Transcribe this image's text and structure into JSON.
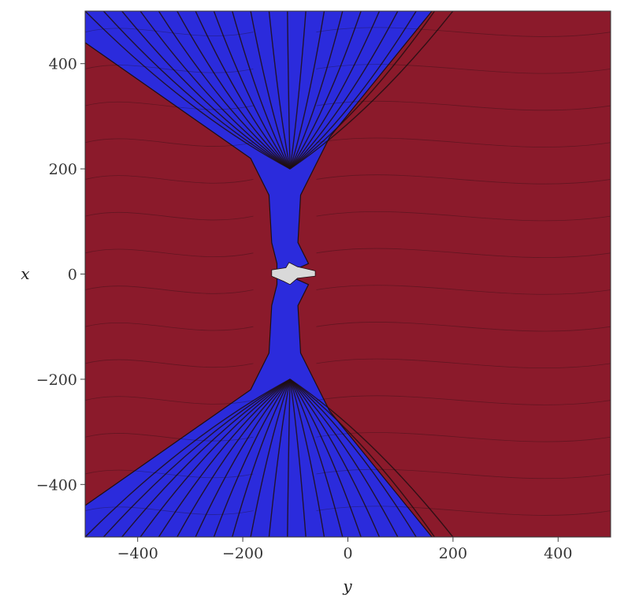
{
  "chart_data": {
    "type": "heatmap",
    "xlabel": "y",
    "ylabel": "x",
    "xlim": [
      -500,
      500
    ],
    "ylim": [
      -500,
      500
    ],
    "xticks": [
      {
        "value": -400,
        "label": "−400"
      },
      {
        "value": -200,
        "label": "−200"
      },
      {
        "value": 0,
        "label": "0"
      },
      {
        "value": 200,
        "label": "200"
      },
      {
        "value": 400,
        "label": "400"
      }
    ],
    "yticks": [
      {
        "value": 400,
        "label": "400"
      },
      {
        "value": 200,
        "label": "200"
      },
      {
        "value": 0,
        "label": "0"
      },
      {
        "value": -200,
        "label": "−200"
      },
      {
        "value": -400,
        "label": "−400"
      }
    ],
    "grid": false,
    "colors": {
      "region_a": "#8b1a2b",
      "region_b": "#2b2bdc",
      "core": "#d9d9d9",
      "contour": "#1e0e12"
    },
    "regions": [
      {
        "kind": "region_a",
        "polygon": [
          [
            -500,
            500
          ],
          [
            500,
            500
          ],
          [
            500,
            -500
          ],
          [
            -500,
            -500
          ]
        ]
      },
      {
        "kind": "region_b",
        "polygon": [
          [
            -500,
            500
          ],
          [
            160,
            500
          ],
          [
            -35,
            260
          ],
          [
            -60,
            210
          ],
          [
            -90,
            150
          ],
          [
            -95,
            60
          ],
          [
            -75,
            20
          ],
          [
            -120,
            0
          ],
          [
            -75,
            -20
          ],
          [
            -95,
            -60
          ],
          [
            -90,
            -150
          ],
          [
            -60,
            -210
          ],
          [
            -35,
            -260
          ],
          [
            160,
            -500
          ],
          [
            -500,
            -500
          ],
          [
            -500,
            440
          ],
          [
            -185,
            220
          ],
          [
            -150,
            150
          ],
          [
            -145,
            60
          ],
          [
            -135,
            20
          ],
          [
            -135,
            -20
          ],
          [
            -145,
            -60
          ],
          [
            -150,
            -150
          ],
          [
            -185,
            -220
          ],
          [
            -500,
            -440
          ]
        ]
      },
      {
        "kind": "core",
        "polygon": [
          [
            -145,
            8
          ],
          [
            -118,
            12
          ],
          [
            -112,
            22
          ],
          [
            -96,
            14
          ],
          [
            -62,
            6
          ],
          [
            -62,
            -4
          ],
          [
            -96,
            -8
          ],
          [
            -110,
            -20
          ],
          [
            -122,
            -14
          ],
          [
            -145,
            -4
          ]
        ]
      }
    ],
    "wedge_contours": {
      "upper": {
        "apex": [
          -110,
          200
        ],
        "top_y": 500,
        "left_x": -500,
        "right_x": 200,
        "count": 20
      },
      "lower": {
        "apex": [
          -110,
          -200
        ],
        "top_y": -500,
        "left_x": -500,
        "right_x": 200,
        "count": 20
      }
    }
  }
}
